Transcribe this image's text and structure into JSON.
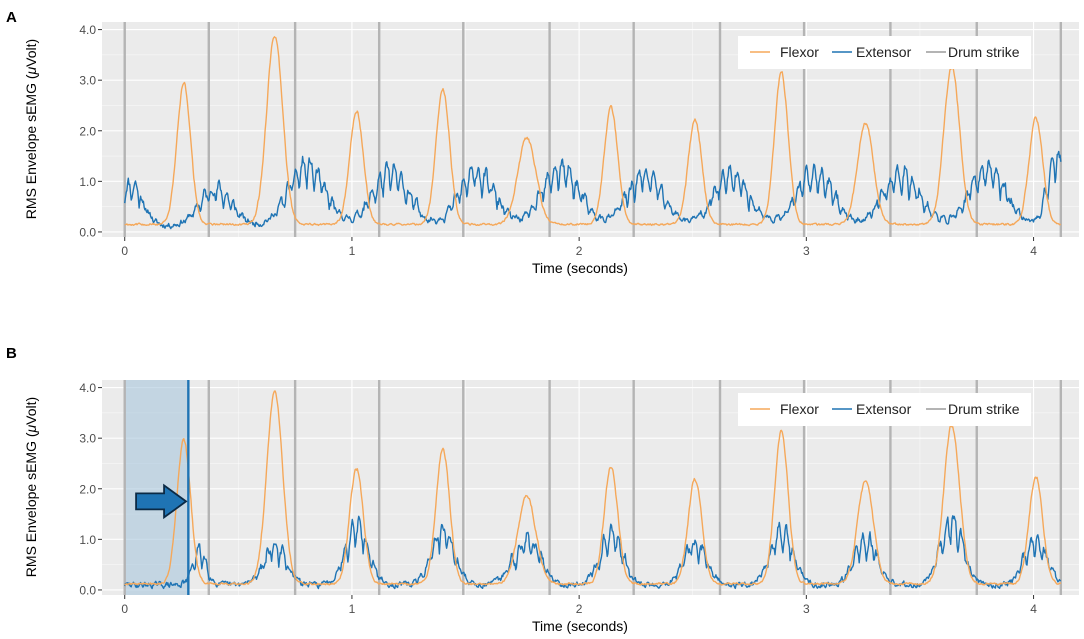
{
  "colors": {
    "flexor": "#F5A85A",
    "extensor": "#1F74B4",
    "drum": "#B4B4B4",
    "panel": "#EBEBEB",
    "grid": "#FFFFFF",
    "highlight": "#A8C6DC"
  },
  "chart_data": [
    {
      "type": "line",
      "panel_label": "A",
      "title": "",
      "xlabel": "Time (seconds)",
      "ylabel_prefix": "RMS Envelope sEMG (",
      "ylabel_unit_symbol": "μ",
      "ylabel_suffix": "Volt)",
      "xlim": [
        -0.1,
        4.2
      ],
      "ylim": [
        -0.1,
        4.15
      ],
      "x_ticks": [
        0,
        1,
        2,
        3,
        4
      ],
      "x_tick_labels": [
        "0",
        "1",
        "2",
        "3",
        "4"
      ],
      "y_ticks": [
        0,
        1,
        2,
        3,
        4
      ],
      "y_tick_labels": [
        "0.0",
        "1.0",
        "2.0",
        "3.0",
        "4.0"
      ],
      "grid": true,
      "legend": {
        "position": "top-right",
        "entries": [
          "Flexor",
          "Extensor",
          "Drum strike"
        ]
      },
      "drum_strikes": [
        0,
        0.37,
        0.75,
        1.12,
        1.49,
        1.87,
        2.24,
        2.62,
        2.99,
        3.37,
        3.75,
        4.12
      ],
      "series": [
        {
          "name": "Flexor",
          "baseline": 0.15,
          "peaks": [
            {
              "x": 0.26,
              "y": 2.95,
              "w": 0.03
            },
            {
              "x": 0.66,
              "y": 3.9,
              "w": 0.035
            },
            {
              "x": 1.02,
              "y": 2.4,
              "w": 0.03
            },
            {
              "x": 1.4,
              "y": 2.8,
              "w": 0.03
            },
            {
              "x": 1.77,
              "y": 1.85,
              "w": 0.04
            },
            {
              "x": 2.14,
              "y": 2.45,
              "w": 0.03
            },
            {
              "x": 2.51,
              "y": 2.2,
              "w": 0.03
            },
            {
              "x": 2.89,
              "y": 3.15,
              "w": 0.03
            },
            {
              "x": 3.26,
              "y": 2.15,
              "w": 0.035
            },
            {
              "x": 3.64,
              "y": 3.25,
              "w": 0.035
            },
            {
              "x": 4.01,
              "y": 2.25,
              "w": 0.03
            }
          ]
        },
        {
          "name": "Extensor",
          "baseline": 0.12,
          "peaks": [
            {
              "x": 0.03,
              "y": 1.05,
              "w": 0.05
            },
            {
              "x": 0.4,
              "y": 0.95,
              "w": 0.07
            },
            {
              "x": 0.8,
              "y": 1.45,
              "w": 0.08
            },
            {
              "x": 1.17,
              "y": 1.3,
              "w": 0.08
            },
            {
              "x": 1.55,
              "y": 1.3,
              "w": 0.08
            },
            {
              "x": 1.92,
              "y": 1.4,
              "w": 0.08
            },
            {
              "x": 2.29,
              "y": 1.25,
              "w": 0.08
            },
            {
              "x": 2.67,
              "y": 1.25,
              "w": 0.08
            },
            {
              "x": 3.04,
              "y": 1.3,
              "w": 0.08
            },
            {
              "x": 3.42,
              "y": 1.3,
              "w": 0.08
            },
            {
              "x": 3.8,
              "y": 1.4,
              "w": 0.08
            },
            {
              "x": 4.1,
              "y": 1.65,
              "w": 0.04
            }
          ]
        }
      ]
    },
    {
      "type": "line",
      "panel_label": "B",
      "title": "",
      "xlabel": "Time (seconds)",
      "ylabel_prefix": "RMS Envelope sEMG (",
      "ylabel_unit_symbol": "μ",
      "ylabel_suffix": "Volt)",
      "xlim": [
        -0.1,
        4.2
      ],
      "ylim": [
        -0.1,
        4.15
      ],
      "x_ticks": [
        0,
        1,
        2,
        3,
        4
      ],
      "x_tick_labels": [
        "0",
        "1",
        "2",
        "3",
        "4"
      ],
      "y_ticks": [
        0,
        1,
        2,
        3,
        4
      ],
      "y_tick_labels": [
        "0.0",
        "1.0",
        "2.0",
        "3.0",
        "4.0"
      ],
      "grid": true,
      "legend": {
        "position": "top-right",
        "entries": [
          "Flexor",
          "Extensor",
          "Drum strike"
        ]
      },
      "drum_strikes": [
        0,
        0.37,
        0.75,
        1.12,
        1.49,
        1.87,
        2.24,
        2.62,
        2.99,
        3.37,
        3.75,
        4.12
      ],
      "highlight_region": [
        0,
        0.28
      ],
      "marker_line_x": 0.28,
      "arrow": {
        "x_start": 0.05,
        "x_end": 0.27,
        "y": 1.75
      },
      "series": [
        {
          "name": "Flexor",
          "baseline": 0.12,
          "peaks": [
            {
              "x": 0.26,
              "y": 2.95,
              "w": 0.03
            },
            {
              "x": 0.66,
              "y": 3.9,
              "w": 0.035
            },
            {
              "x": 1.02,
              "y": 2.4,
              "w": 0.03
            },
            {
              "x": 1.4,
              "y": 2.8,
              "w": 0.03
            },
            {
              "x": 1.77,
              "y": 1.85,
              "w": 0.04
            },
            {
              "x": 2.14,
              "y": 2.45,
              "w": 0.03
            },
            {
              "x": 2.51,
              "y": 2.2,
              "w": 0.03
            },
            {
              "x": 2.89,
              "y": 3.15,
              "w": 0.03
            },
            {
              "x": 3.26,
              "y": 2.15,
              "w": 0.035
            },
            {
              "x": 3.64,
              "y": 3.25,
              "w": 0.035
            },
            {
              "x": 4.01,
              "y": 2.25,
              "w": 0.03
            }
          ]
        },
        {
          "name": "Extensor",
          "baseline": 0.1,
          "peaks": [
            {
              "x": 0.33,
              "y": 0.85,
              "w": 0.03
            },
            {
              "x": 0.66,
              "y": 0.95,
              "w": 0.05
            },
            {
              "x": 1.02,
              "y": 1.45,
              "w": 0.05
            },
            {
              "x": 1.4,
              "y": 1.3,
              "w": 0.05
            },
            {
              "x": 1.77,
              "y": 1.1,
              "w": 0.06
            },
            {
              "x": 2.14,
              "y": 1.25,
              "w": 0.05
            },
            {
              "x": 2.51,
              "y": 1.0,
              "w": 0.05
            },
            {
              "x": 2.89,
              "y": 1.3,
              "w": 0.05
            },
            {
              "x": 3.26,
              "y": 1.15,
              "w": 0.05
            },
            {
              "x": 3.64,
              "y": 1.5,
              "w": 0.05
            },
            {
              "x": 4.01,
              "y": 1.05,
              "w": 0.05
            }
          ]
        }
      ]
    }
  ]
}
